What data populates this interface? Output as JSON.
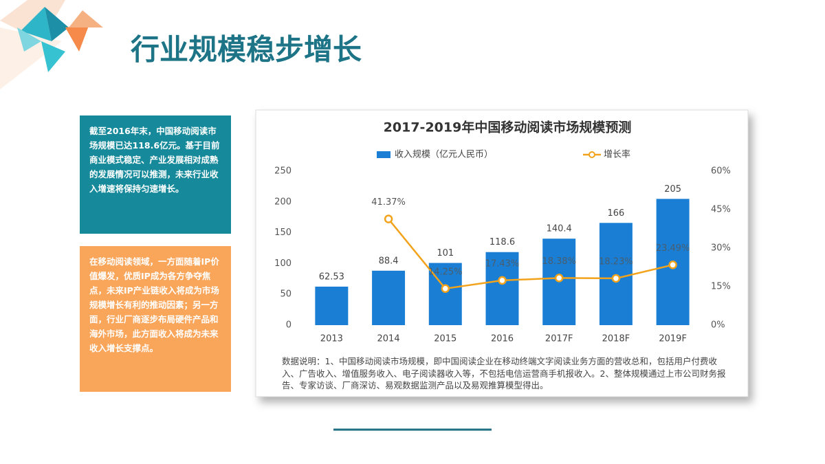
{
  "slide": {
    "title": "行业规模稳步增长",
    "boxes": [
      "截至2016年末，中国移动阅读市场规模已达118.6亿元。基于目前商业模式稳定、产业发展相对成熟的发展情况可以推测，未来行业收入增速将保持匀速增长。",
      "在移动阅读领域，一方面随着IP价值爆发，优质IP成为各方争夺焦点，未来IP产业链收入将成为市场规模增长有利的推动因素；另一方面，行业厂商逐步布局硬件产品和海外市场，此方面收入将成为未来收入增长支撑点。"
    ]
  },
  "chart_data": {
    "type": "bar",
    "title": "2017-2019年中国移动阅读市场规模预测",
    "categories": [
      "2013",
      "2014",
      "2015",
      "2016",
      "2017F",
      "2018F",
      "2019F"
    ],
    "series": [
      {
        "name": "收入规模（亿元人民币）",
        "type": "bar",
        "color": "#1a7fd4",
        "values": [
          62.53,
          88.4,
          101,
          118.6,
          140.4,
          166,
          205
        ]
      },
      {
        "name": "增长率",
        "type": "line",
        "axis": "y2",
        "color": "#f2a31b",
        "values": [
          null,
          41.37,
          14.25,
          17.43,
          18.38,
          18.23,
          23.49
        ],
        "value_labels": [
          null,
          "41.37%",
          "14.25%",
          "17.43%",
          "18.38%",
          "18.23%",
          "23.49%"
        ]
      }
    ],
    "ylim": [
      0,
      250
    ],
    "yticks": [
      0,
      50,
      100,
      150,
      200,
      250
    ],
    "y2lim": [
      0,
      60
    ],
    "y2ticks": [
      {
        "value": 0,
        "label": "0%"
      },
      {
        "value": 15,
        "label": "15%"
      },
      {
        "value": 30,
        "label": "30%"
      },
      {
        "value": 45,
        "label": "45%"
      },
      {
        "value": 60,
        "label": "60%"
      }
    ],
    "grid": false,
    "note": "数据说明：1、中国移动阅读市场规模，即中国阅读企业在移动终端文字阅读业务方面的营收总和，包括用户付费收入、广告收入、增值服务收入、电子阅读器收入等，不包括电信运营商手机报收入。2、整体规模通过上市公司财务报告、专家访谈、厂商深访、易观数据监测产品以及易观推算模型得出。"
  }
}
